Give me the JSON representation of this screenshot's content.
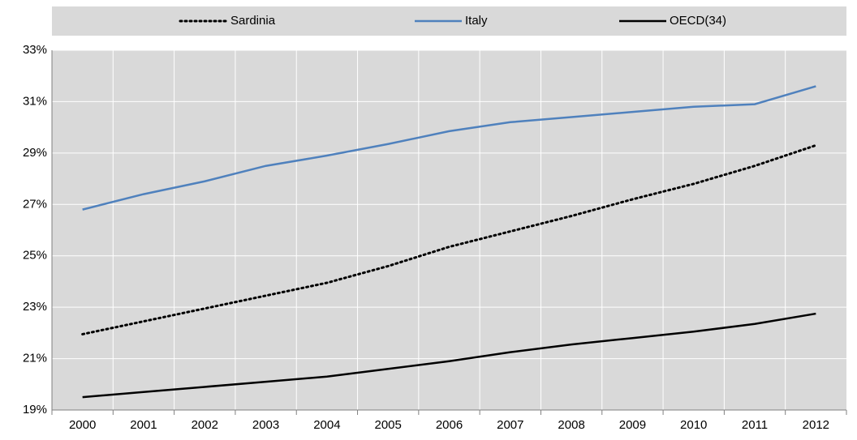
{
  "chart_data": {
    "type": "line",
    "categories": [
      "2000",
      "2001",
      "2002",
      "2003",
      "2004",
      "2005",
      "2006",
      "2007",
      "2008",
      "2009",
      "2010",
      "2011",
      "2012"
    ],
    "series": [
      {
        "name": "Sardinia",
        "color": "#000000",
        "style": "dotted",
        "values": [
          21.95,
          22.45,
          22.95,
          23.45,
          23.95,
          24.6,
          25.35,
          25.95,
          26.55,
          27.2,
          27.8,
          28.5,
          29.3
        ]
      },
      {
        "name": "Italy",
        "color": "#4f81bd",
        "style": "solid",
        "values": [
          26.8,
          27.4,
          27.9,
          28.5,
          28.9,
          29.35,
          29.85,
          30.2,
          30.4,
          30.6,
          30.8,
          30.9,
          31.6
        ]
      },
      {
        "name": "OECD(34)",
        "color": "#000000",
        "style": "solid",
        "values": [
          19.5,
          19.7,
          19.9,
          20.1,
          20.3,
          20.6,
          20.9,
          21.25,
          21.55,
          21.8,
          22.05,
          22.35,
          22.75
        ]
      }
    ],
    "ylim": [
      19,
      33
    ],
    "yticks": [
      {
        "value": 19,
        "label": "19%"
      },
      {
        "value": 21,
        "label": "21%"
      },
      {
        "value": 23,
        "label": "23%"
      },
      {
        "value": 25,
        "label": "25%"
      },
      {
        "value": 27,
        "label": "27%"
      },
      {
        "value": 29,
        "label": "29%"
      },
      {
        "value": 31,
        "label": "31%"
      },
      {
        "value": 33,
        "label": "33%"
      }
    ],
    "grid": true,
    "legend": "top"
  }
}
